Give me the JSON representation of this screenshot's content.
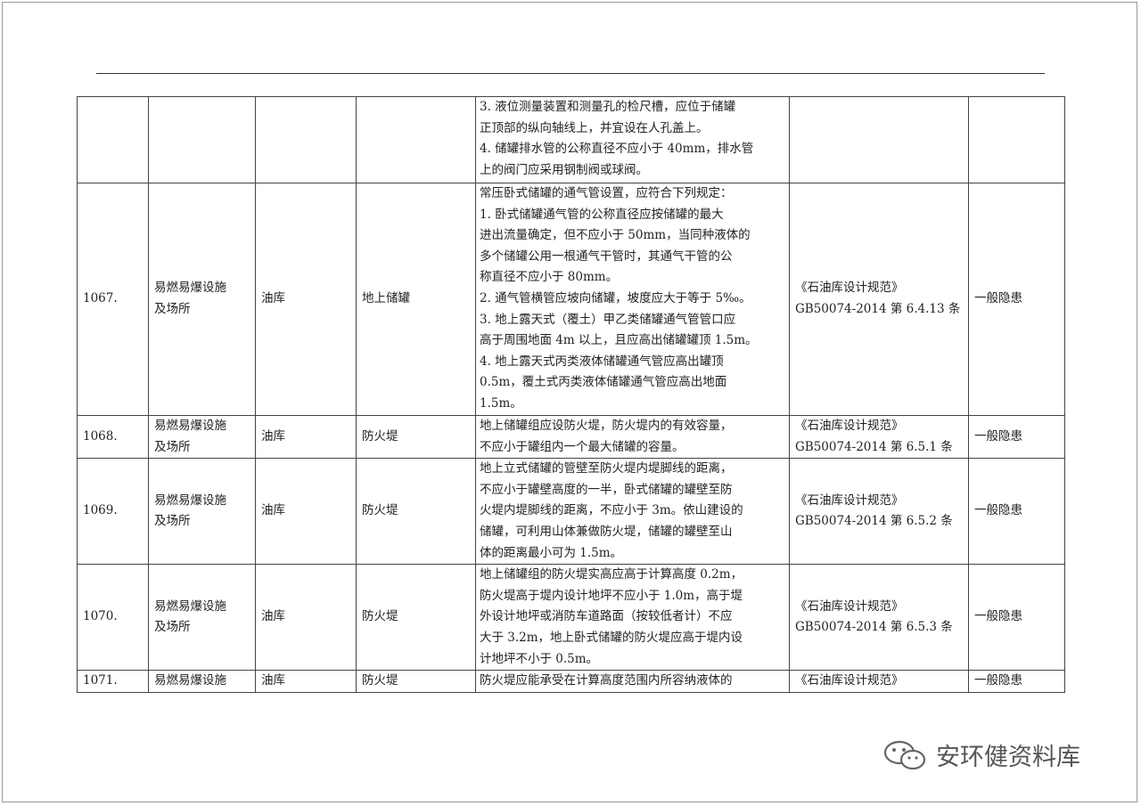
{
  "table": {
    "rows": [
      {
        "no": "",
        "category": "",
        "place": "",
        "item": "",
        "content": "3. 液位测量装置和测量孔的检尺槽，应位于储罐\n正顶部的纵向轴线上，并宜设在人孔盖上。\n4. 储罐排水管的公称直径不应小于 40mm，排水管\n上的阀门应采用钢制阀或球阀。",
        "basis": "",
        "level": ""
      },
      {
        "no": "1067.",
        "category": "易燃易爆设施\n及场所",
        "place": "油库",
        "item": "地上储罐",
        "content": "常压卧式储罐的通气管设置，应符合下列规定：\n1. 卧式储罐通气管的公称直径应按储罐的最大\n进出流量确定，但不应小于 50mm，当同种液体的\n多个储罐公用一根通气干管时，其通气干管的公\n称直径不应小于 80mm。\n2. 通气管横管应坡向储罐，坡度应大于等于 5‰。\n3. 地上露天式（覆土）甲乙类储罐通气管管口应\n高于周围地面 4m 以上，且应高出储罐罐顶 1.5m。\n4. 地上露天式丙类液体储罐通气管应高出罐顶\n0.5m，覆土式丙类液体储罐通气管应高出地面\n1.5m。",
        "basis": "《石油库设计规范》\nGB50074-2014 第 6.4.13 条",
        "level": "一般隐患"
      },
      {
        "no": "1068.",
        "category": "易燃易爆设施\n及场所",
        "place": "油库",
        "item": "防火堤",
        "content": "地上储罐组应设防火堤，防火堤内的有效容量，\n不应小于罐组内一个最大储罐的容量。",
        "basis": "《石油库设计规范》\nGB50074-2014 第 6.5.1 条",
        "level": "一般隐患"
      },
      {
        "no": "1069.",
        "category": "易燃易爆设施\n及场所",
        "place": "油库",
        "item": "防火堤",
        "content": "地上立式储罐的管壁至防火堤内堤脚线的距离，\n不应小于罐壁高度的一半，卧式储罐的罐壁至防\n火堤内堤脚线的距离，不应小于 3m。依山建设的\n储罐，可利用山体兼做防火堤，储罐的罐壁至山\n体的距离最小可为 1.5m。",
        "basis": "《石油库设计规范》\nGB50074-2014 第 6.5.2 条",
        "level": "一般隐患"
      },
      {
        "no": "1070.",
        "category": "易燃易爆设施\n及场所",
        "place": "油库",
        "item": "防火堤",
        "content": "地上储罐组的防火堤实高应高于计算高度 0.2m，\n防火堤高于堤内设计地坪不应小于 1.0m，高于堤\n外设计地坪或消防车道路面（按较低者计）不应\n大于 3.2m，地上卧式储罐的防火堤应高于堤内设\n计地坪不小于 0.5m。",
        "basis": "《石油库设计规范》\nGB50074-2014 第 6.5.3 条",
        "level": "一般隐患"
      },
      {
        "no": "1071.",
        "category": "易燃易爆设施",
        "place": "油库",
        "item": "防火堤",
        "content": "防火堤应能承受在计算高度范围内所容纳液体的",
        "basis": "《石油库设计规范》",
        "level": "一般隐患"
      }
    ]
  },
  "watermark": {
    "text": "安环健资料库",
    "icon": "wechat-icon"
  }
}
